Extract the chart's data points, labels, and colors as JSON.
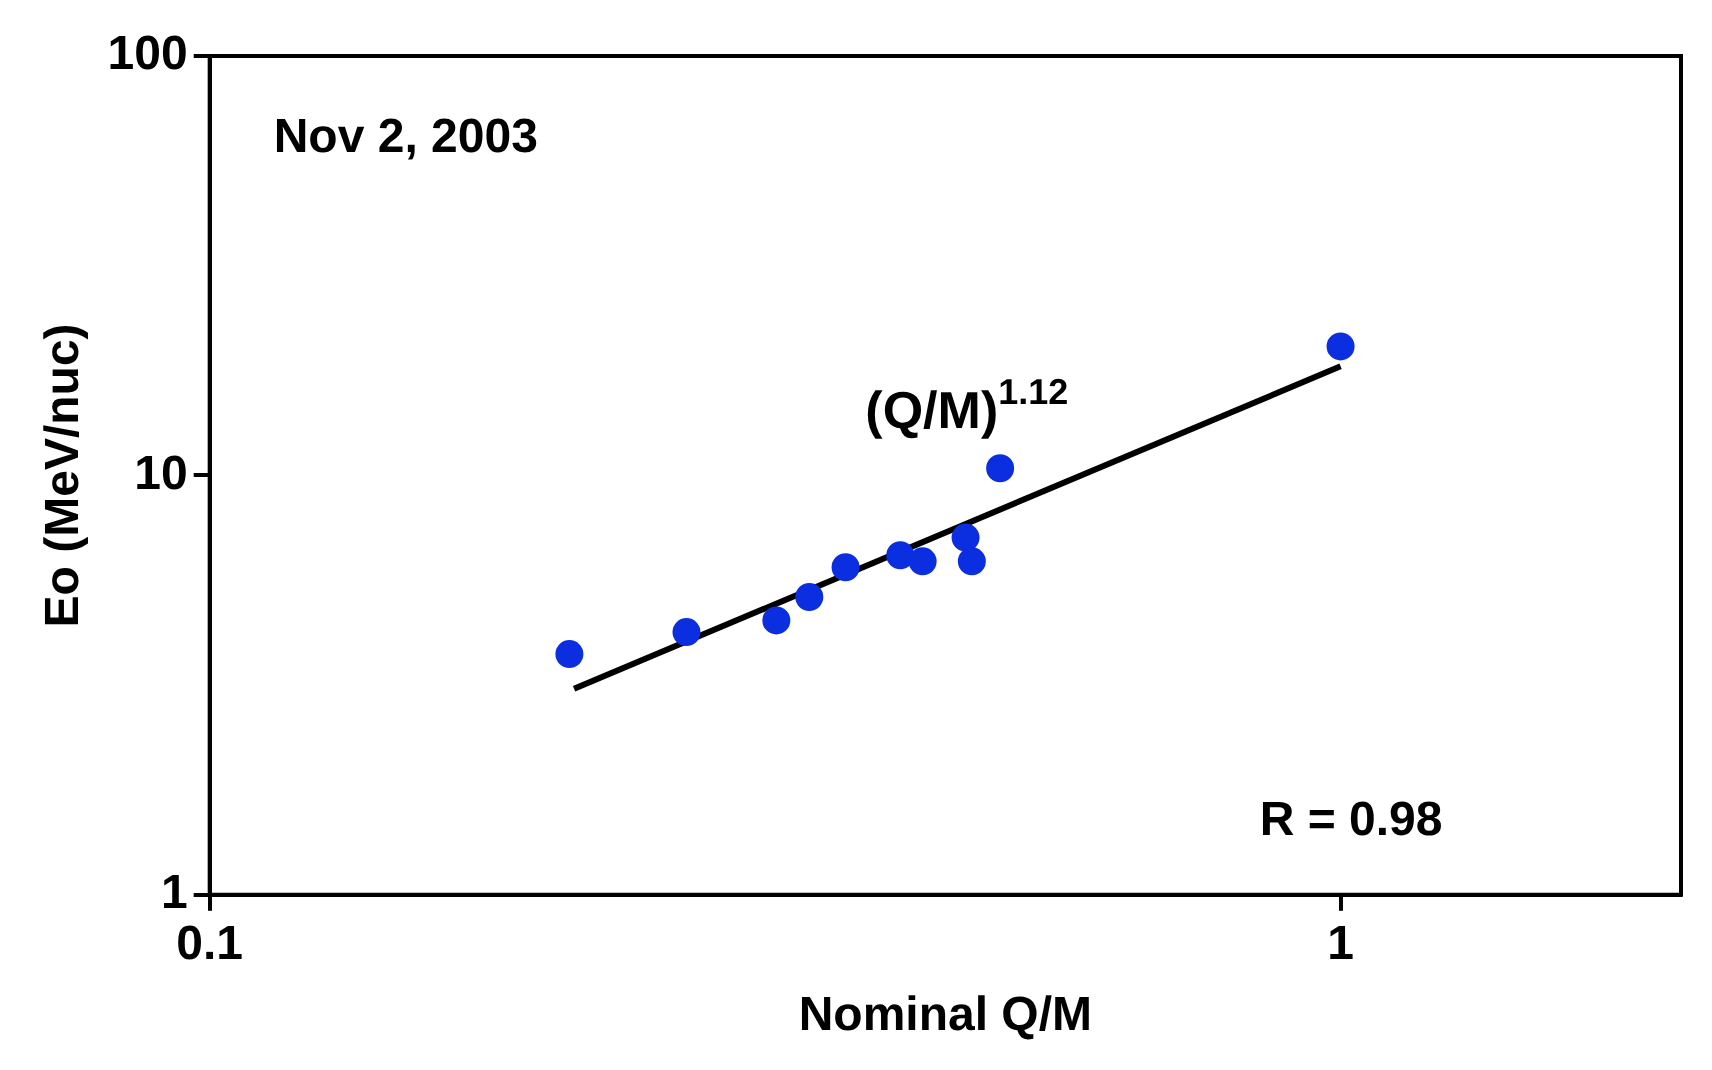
{
  "chart_data": {
    "type": "scatter",
    "xlabel": "Nominal Q/M",
    "ylabel": "Eo (MeV/nuc)",
    "log": "xy",
    "xlim": [
      0.1,
      2
    ],
    "ylim": [
      1,
      100
    ],
    "xticks": [
      0.1,
      1
    ],
    "yticks": [
      1,
      10,
      100
    ],
    "grid": false,
    "legend": false,
    "marker": "circle",
    "annotations": [
      "Nov 2, 2003",
      "(Q/M)$^{1.12}$",
      "R = 0.98"
    ],
    "series": [
      {
        "color": "#0b2fe0",
        "x": [
          0.208,
          0.264,
          0.317,
          0.339,
          0.365,
          0.408,
          0.427,
          0.466,
          0.472,
          0.5,
          1.0
        ],
        "values": [
          3.75,
          4.23,
          4.51,
          5.13,
          6.04,
          6.45,
          6.24,
          7.11,
          6.24,
          10.4,
          20.3
        ]
      },
      {
        "type": "line",
        "color": "#000000",
        "x": [
          0.21,
          1.0
        ],
        "values": [
          3.1,
          18.2
        ],
        "marker": "none",
        "line_style": "solid"
      }
    ]
  }
}
